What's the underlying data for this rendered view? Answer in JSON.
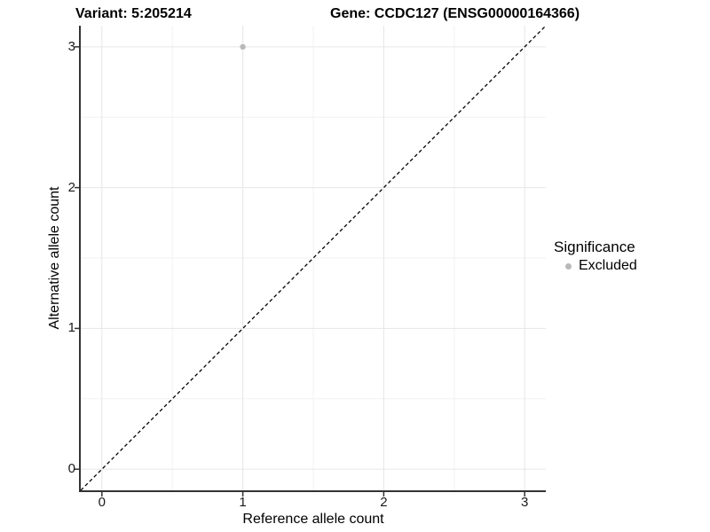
{
  "chart_data": {
    "type": "scatter",
    "title_left": "Variant: 5:205214",
    "title_right": "Gene: CCDC127 (ENSG00000164366)",
    "xlabel": "Reference allele count",
    "ylabel": "Alternative allele count",
    "xlim": [
      -0.15,
      3.15
    ],
    "ylim": [
      -0.15,
      3.15
    ],
    "x_ticks": [
      0,
      1,
      2,
      3
    ],
    "y_ticks": [
      0,
      1,
      2,
      3
    ],
    "x_minor_ticks": [
      0.5,
      1.5,
      2.5
    ],
    "y_minor_ticks": [
      0.5,
      1.5,
      2.5
    ],
    "grid": "on",
    "identity_line": {
      "style": "dashed",
      "color": "#000000",
      "x": [
        -0.15,
        3.15
      ],
      "y": [
        -0.15,
        3.15
      ]
    },
    "series": [
      {
        "name": "Excluded",
        "color": "#b9b9b9",
        "points": [
          {
            "x": 1,
            "y": 3
          }
        ]
      }
    ],
    "legend": {
      "position": "right",
      "title": "Significance",
      "items": [
        {
          "label": "Excluded",
          "color": "#b9b9b9"
        }
      ]
    },
    "colors": {
      "major_grid": "#e6e6e6",
      "minor_grid": "#f2f2f2",
      "axis_line": "#333333"
    }
  }
}
